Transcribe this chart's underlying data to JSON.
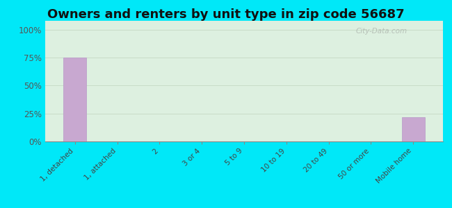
{
  "title": "Owners and renters by unit type in zip code 56687",
  "categories": [
    "1, detached",
    "1, attached",
    "2",
    "3 or 4",
    "5 to 9",
    "10 to 19",
    "20 to 49",
    "50 or more",
    "Mobile home"
  ],
  "values": [
    75,
    0,
    0,
    0,
    0,
    0,
    0,
    0,
    22
  ],
  "bar_color": "#c8a8d0",
  "bar_edge_color": "#b898c8",
  "bg_outer": "#00e8f8",
  "bg_plot": "#ddf0e0",
  "title_fontsize": 13,
  "tick_label_fontsize": 7.5,
  "ytick_labels": [
    "0%",
    "25%",
    "50%",
    "75%",
    "100%"
  ],
  "ytick_values": [
    0,
    25,
    50,
    75,
    100
  ],
  "ylim": [
    0,
    108
  ],
  "grid_color": "#c8dcc8",
  "watermark": "City-Data.com"
}
